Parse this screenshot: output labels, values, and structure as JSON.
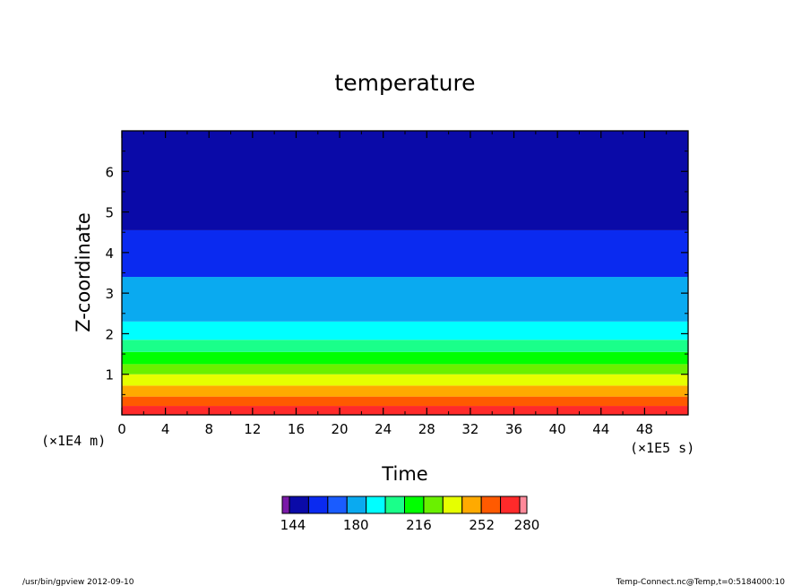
{
  "chart_data": {
    "type": "heatmap",
    "title": "temperature",
    "xlabel": "Time",
    "ylabel": "Z-coordinate",
    "x_scale_label": "(×1E5 s)",
    "y_scale_label": "(×1E4 m)",
    "xlim": [
      0,
      52
    ],
    "ylim": [
      0,
      7
    ],
    "x_ticks": [
      0,
      4,
      8,
      12,
      16,
      20,
      24,
      28,
      32,
      36,
      40,
      44,
      48
    ],
    "y_ticks": [
      1,
      2,
      3,
      4,
      5,
      6
    ],
    "colorbar": {
      "colors": [
        "#7a1aa8",
        "#0a0aa8",
        "#0a2af0",
        "#1a5cff",
        "#0aaaf0",
        "#00ffff",
        "#1aff8a",
        "#00ff00",
        "#6af000",
        "#e6ff00",
        "#ffaa00",
        "#ff5a00",
        "#ff2a2a",
        "#ff8a9a"
      ],
      "tick_labels": [
        "144",
        "180",
        "216",
        "252",
        "280"
      ]
    },
    "bands": [
      {
        "from": 0.0,
        "to": 0.22,
        "color": "#ff2a2a"
      },
      {
        "from": 0.22,
        "to": 0.45,
        "color": "#ff5a00"
      },
      {
        "from": 0.45,
        "to": 0.72,
        "color": "#ffaa00"
      },
      {
        "from": 0.72,
        "to": 1.0,
        "color": "#e6ff00"
      },
      {
        "from": 1.0,
        "to": 1.25,
        "color": "#6af000"
      },
      {
        "from": 1.25,
        "to": 1.55,
        "color": "#00ff00"
      },
      {
        "from": 1.55,
        "to": 1.85,
        "color": "#1aff8a"
      },
      {
        "from": 1.85,
        "to": 2.3,
        "color": "#00ffff"
      },
      {
        "from": 2.3,
        "to": 3.4,
        "color": "#0aaaf0"
      },
      {
        "from": 3.4,
        "to": 4.55,
        "color": "#0a2af0"
      },
      {
        "from": 4.55,
        "to": 7.0,
        "color": "#0a0aa8"
      }
    ]
  },
  "footer": {
    "left": "/usr/bin/gpview   2012-09-10",
    "right": "Temp-Connect.nc@Temp,t=0:5184000:10"
  }
}
